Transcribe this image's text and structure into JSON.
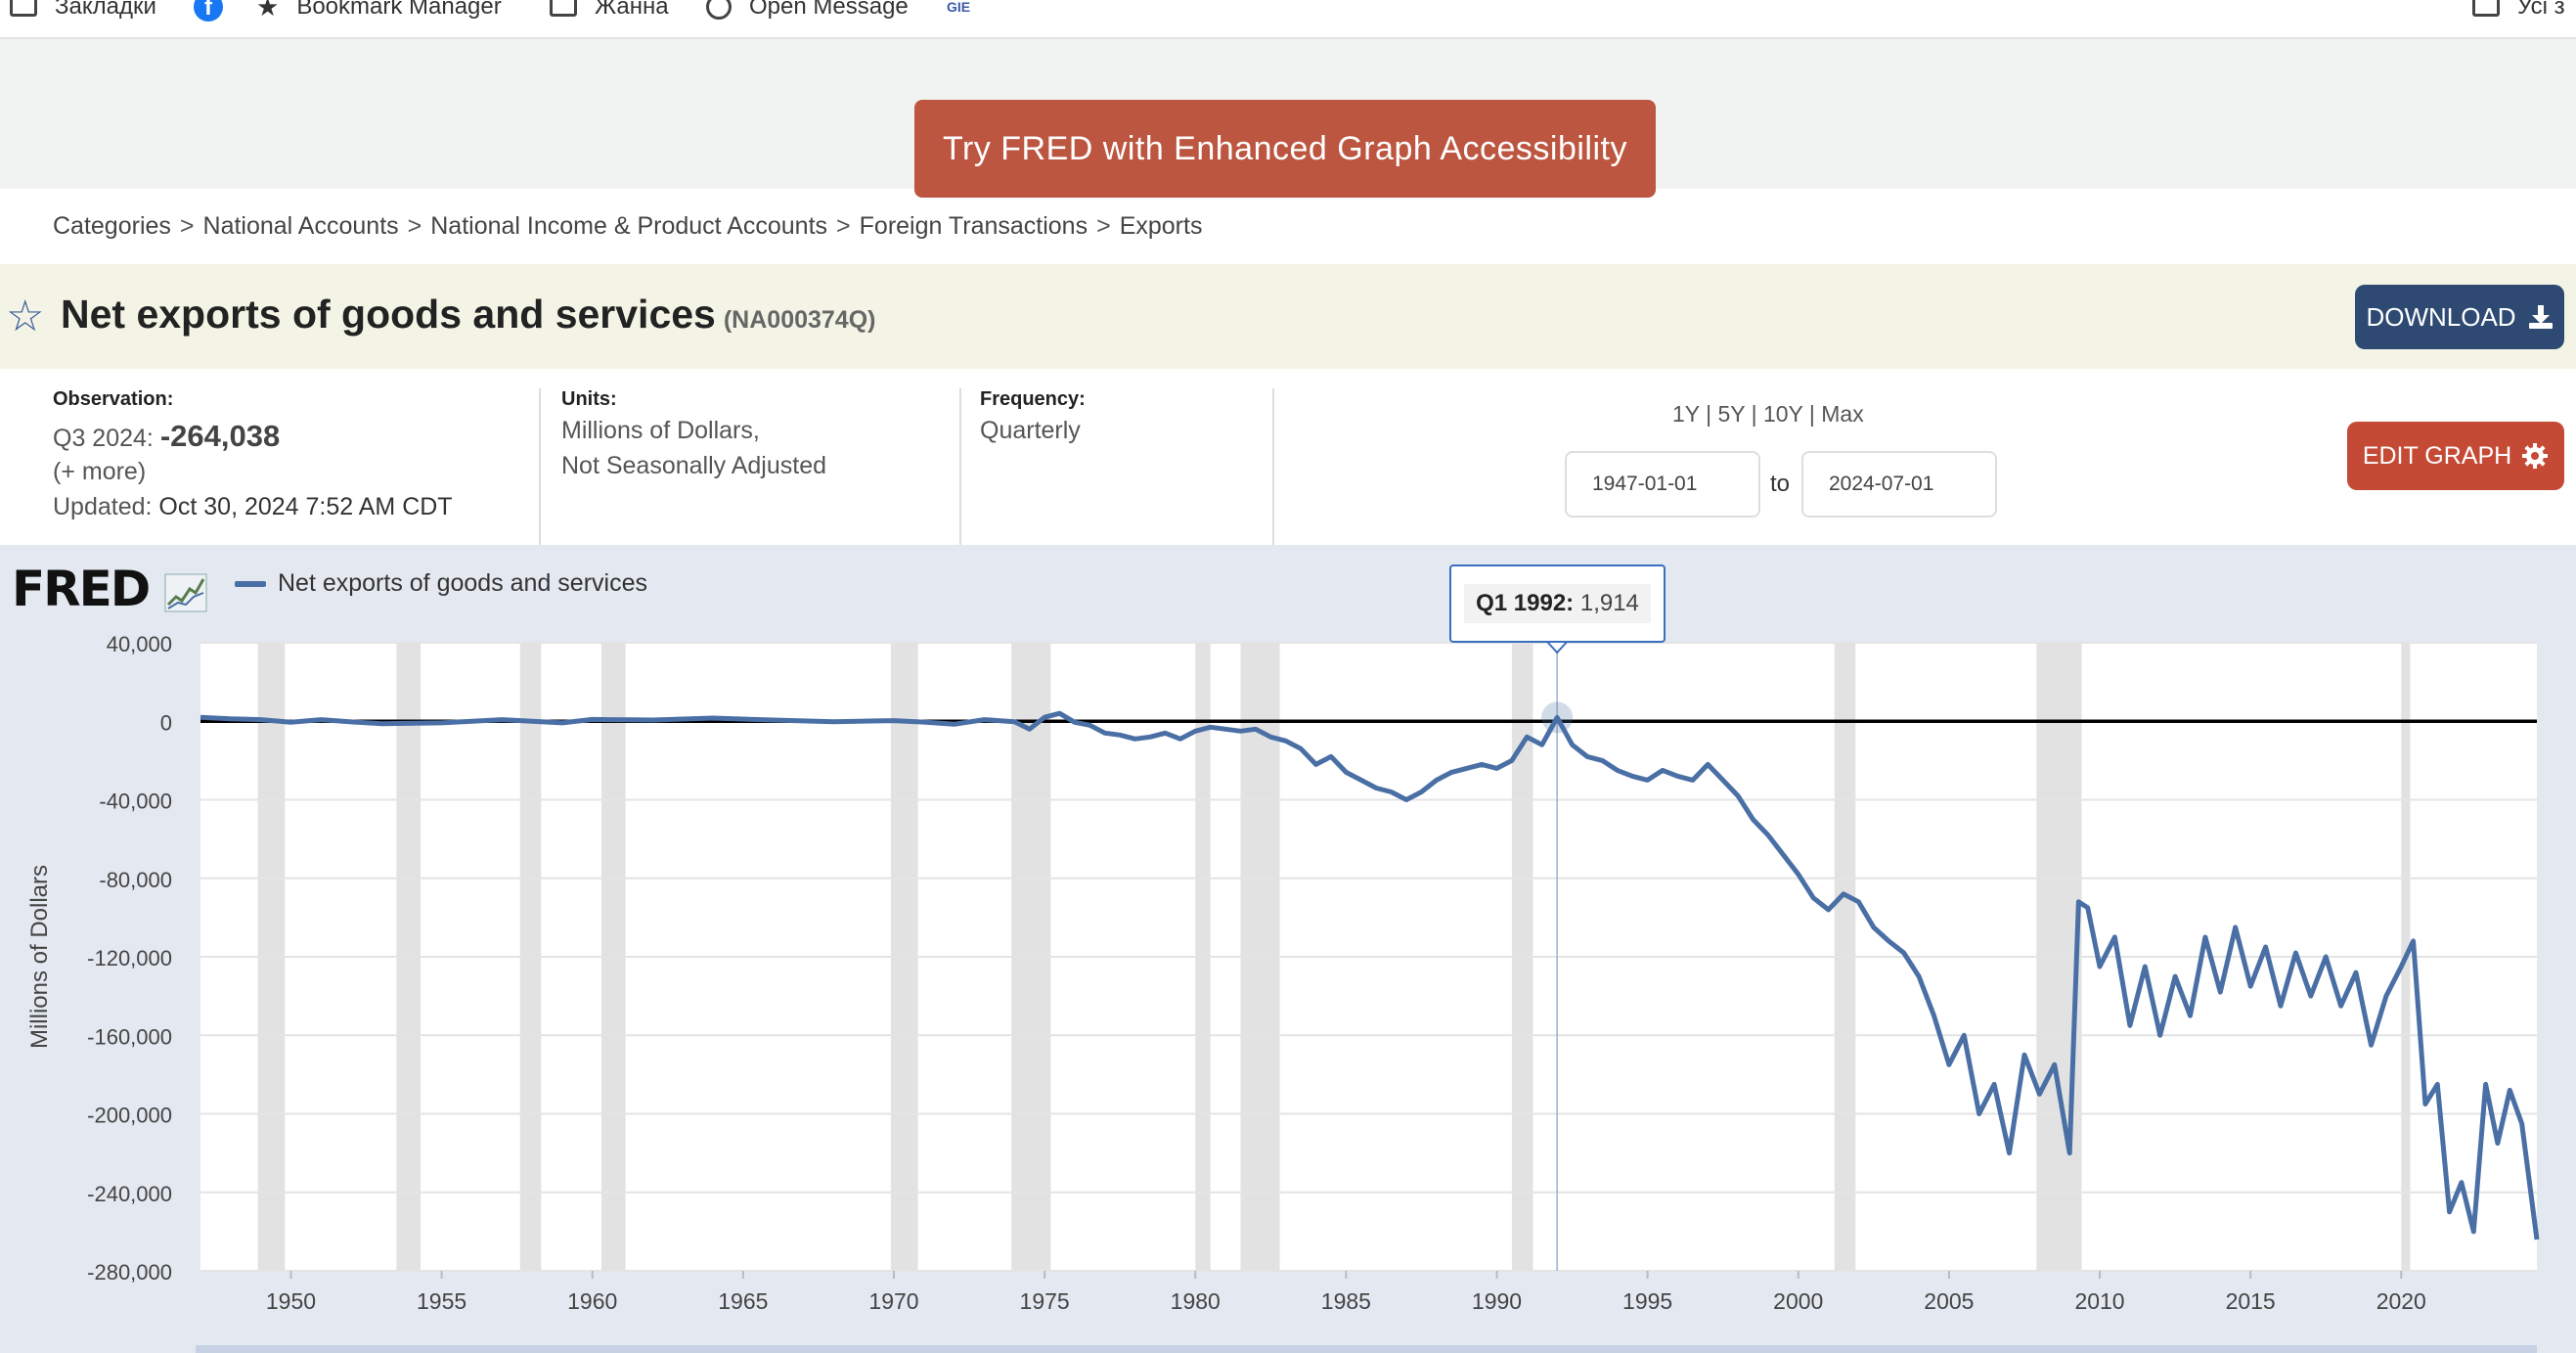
{
  "bookmarks": [
    {
      "label": "Закладки",
      "icon": "folder-icon"
    },
    {
      "label": "",
      "icon": "facebook-icon"
    },
    {
      "label": "Bookmark Manager",
      "icon": "star-icon"
    },
    {
      "label": "Жанна",
      "icon": "folder-icon"
    },
    {
      "label": "Open Message",
      "icon": "globe-icon"
    },
    {
      "label": "GIE",
      "icon": "gie-icon"
    }
  ],
  "bookmarks_right": {
    "label": "Усі з",
    "icon": "folder-icon"
  },
  "banner": {
    "button_label": "Try FRED with Enhanced Graph Accessibility"
  },
  "breadcrumb": [
    "Categories",
    "National Accounts",
    "National Income & Product Accounts",
    "Foreign Transactions",
    "Exports"
  ],
  "series": {
    "title": "Net exports of goods and services",
    "id": "(NA000374Q)",
    "download_label": "DOWNLOAD",
    "edit_label": "EDIT GRAPH"
  },
  "observation": {
    "label": "Observation:",
    "period": "Q3 2024:",
    "value": "-264,038",
    "more": "(+ more)",
    "updated_label": "Updated:",
    "updated_value": "Oct 30, 2024 7:52 AM CDT"
  },
  "units": {
    "label": "Units:",
    "line1": "Millions of Dollars,",
    "line2": "Not Seasonally Adjusted"
  },
  "frequency": {
    "label": "Frequency:",
    "value": "Quarterly"
  },
  "range": {
    "links": [
      "1Y",
      "5Y",
      "10Y",
      "Max"
    ],
    "start": "1947-01-01",
    "end": "2024-07-01",
    "to_label": "to"
  },
  "logo": "FRED",
  "tooltip": {
    "date": "Q1 1992:",
    "value": "1,914"
  },
  "colors": {
    "accent_banner": "#bd5640",
    "download": "#2e4a72",
    "edit": "#c54a35",
    "series": "#4a6fa5"
  },
  "chart_data": {
    "type": "line",
    "ylabel": "Millions of Dollars",
    "ylim": [
      -280000,
      40000
    ],
    "xlim": [
      1947.0,
      2024.5
    ],
    "yticks": [
      40000,
      0,
      -40000,
      -80000,
      -120000,
      -160000,
      -200000,
      -240000,
      -280000
    ],
    "ytick_labels": [
      "40,000",
      "0",
      "-40,000",
      "-80,000",
      "-120,000",
      "-160,000",
      "-200,000",
      "-240,000",
      "-280,000"
    ],
    "xticks": [
      1950,
      1955,
      1960,
      1965,
      1970,
      1975,
      1980,
      1985,
      1990,
      1995,
      2000,
      2005,
      2010,
      2015,
      2020
    ],
    "recessions": [
      [
        1948.9,
        1949.8
      ],
      [
        1953.5,
        1954.3
      ],
      [
        1957.6,
        1958.3
      ],
      [
        1960.3,
        1961.1
      ],
      [
        1969.9,
        1970.8
      ],
      [
        1973.9,
        1975.2
      ],
      [
        1980.0,
        1980.5
      ],
      [
        1981.5,
        1982.8
      ],
      [
        1990.5,
        1991.2
      ],
      [
        2001.2,
        2001.9
      ],
      [
        2007.9,
        2009.4
      ],
      [
        2020.0,
        2020.3
      ]
    ],
    "series": [
      {
        "name": "Net exports of goods and services",
        "points": [
          [
            1947.0,
            2000
          ],
          [
            1948.0,
            1200
          ],
          [
            1949.0,
            800
          ],
          [
            1950.0,
            -500
          ],
          [
            1951.0,
            800
          ],
          [
            1952.0,
            -300
          ],
          [
            1953.0,
            -1200
          ],
          [
            1955.0,
            -800
          ],
          [
            1957.0,
            800
          ],
          [
            1959.0,
            -800
          ],
          [
            1960.0,
            900
          ],
          [
            1962.0,
            600
          ],
          [
            1964.0,
            1600
          ],
          [
            1966.0,
            600
          ],
          [
            1968.0,
            -200
          ],
          [
            1970.0,
            300
          ],
          [
            1971.0,
            -400
          ],
          [
            1972.0,
            -1500
          ],
          [
            1973.0,
            800
          ],
          [
            1974.0,
            -200
          ],
          [
            1974.5,
            -4000
          ],
          [
            1975.0,
            2000
          ],
          [
            1975.5,
            4000
          ],
          [
            1976.0,
            -500
          ],
          [
            1976.5,
            -2000
          ],
          [
            1977.0,
            -6000
          ],
          [
            1977.5,
            -7000
          ],
          [
            1978.0,
            -9000
          ],
          [
            1978.5,
            -8000
          ],
          [
            1979.0,
            -6000
          ],
          [
            1979.5,
            -9000
          ],
          [
            1980.0,
            -5000
          ],
          [
            1980.5,
            -3000
          ],
          [
            1981.0,
            -4000
          ],
          [
            1981.5,
            -5000
          ],
          [
            1982.0,
            -4000
          ],
          [
            1982.5,
            -8000
          ],
          [
            1983.0,
            -10000
          ],
          [
            1983.5,
            -14000
          ],
          [
            1984.0,
            -22000
          ],
          [
            1984.5,
            -18000
          ],
          [
            1985.0,
            -26000
          ],
          [
            1985.5,
            -30000
          ],
          [
            1986.0,
            -34000
          ],
          [
            1986.5,
            -36000
          ],
          [
            1987.0,
            -40000
          ],
          [
            1987.5,
            -36000
          ],
          [
            1988.0,
            -30000
          ],
          [
            1988.5,
            -26000
          ],
          [
            1989.0,
            -24000
          ],
          [
            1989.5,
            -22000
          ],
          [
            1990.0,
            -24000
          ],
          [
            1990.5,
            -20000
          ],
          [
            1991.0,
            -8000
          ],
          [
            1991.5,
            -12000
          ],
          [
            1992.0,
            1914
          ],
          [
            1992.5,
            -12000
          ],
          [
            1993.0,
            -18000
          ],
          [
            1993.5,
            -20000
          ],
          [
            1994.0,
            -25000
          ],
          [
            1994.5,
            -28000
          ],
          [
            1995.0,
            -30000
          ],
          [
            1995.5,
            -25000
          ],
          [
            1996.0,
            -28000
          ],
          [
            1996.5,
            -30000
          ],
          [
            1997.0,
            -22000
          ],
          [
            1997.5,
            -30000
          ],
          [
            1998.0,
            -38000
          ],
          [
            1998.5,
            -50000
          ],
          [
            1999.0,
            -58000
          ],
          [
            1999.5,
            -68000
          ],
          [
            2000.0,
            -78000
          ],
          [
            2000.5,
            -90000
          ],
          [
            2001.0,
            -96000
          ],
          [
            2001.5,
            -88000
          ],
          [
            2002.0,
            -92000
          ],
          [
            2002.5,
            -105000
          ],
          [
            2003.0,
            -112000
          ],
          [
            2003.5,
            -118000
          ],
          [
            2004.0,
            -130000
          ],
          [
            2004.5,
            -150000
          ],
          [
            2005.0,
            -175000
          ],
          [
            2005.5,
            -160000
          ],
          [
            2006.0,
            -200000
          ],
          [
            2006.5,
            -185000
          ],
          [
            2007.0,
            -220000
          ],
          [
            2007.5,
            -170000
          ],
          [
            2008.0,
            -190000
          ],
          [
            2008.5,
            -175000
          ],
          [
            2009.0,
            -220000
          ],
          [
            2009.3,
            -92000
          ],
          [
            2009.6,
            -95000
          ],
          [
            2010.0,
            -125000
          ],
          [
            2010.5,
            -110000
          ],
          [
            2011.0,
            -155000
          ],
          [
            2011.5,
            -125000
          ],
          [
            2012.0,
            -160000
          ],
          [
            2012.5,
            -130000
          ],
          [
            2013.0,
            -150000
          ],
          [
            2013.5,
            -110000
          ],
          [
            2014.0,
            -138000
          ],
          [
            2014.5,
            -105000
          ],
          [
            2015.0,
            -135000
          ],
          [
            2015.5,
            -115000
          ],
          [
            2016.0,
            -145000
          ],
          [
            2016.5,
            -118000
          ],
          [
            2017.0,
            -140000
          ],
          [
            2017.5,
            -120000
          ],
          [
            2018.0,
            -145000
          ],
          [
            2018.5,
            -128000
          ],
          [
            2019.0,
            -165000
          ],
          [
            2019.5,
            -140000
          ],
          [
            2020.0,
            -125000
          ],
          [
            2020.4,
            -112000
          ],
          [
            2020.8,
            -195000
          ],
          [
            2021.2,
            -185000
          ],
          [
            2021.6,
            -250000
          ],
          [
            2022.0,
            -235000
          ],
          [
            2022.4,
            -260000
          ],
          [
            2022.8,
            -185000
          ],
          [
            2023.2,
            -215000
          ],
          [
            2023.6,
            -188000
          ],
          [
            2024.0,
            -205000
          ],
          [
            2024.5,
            -264038
          ]
        ]
      }
    ]
  }
}
